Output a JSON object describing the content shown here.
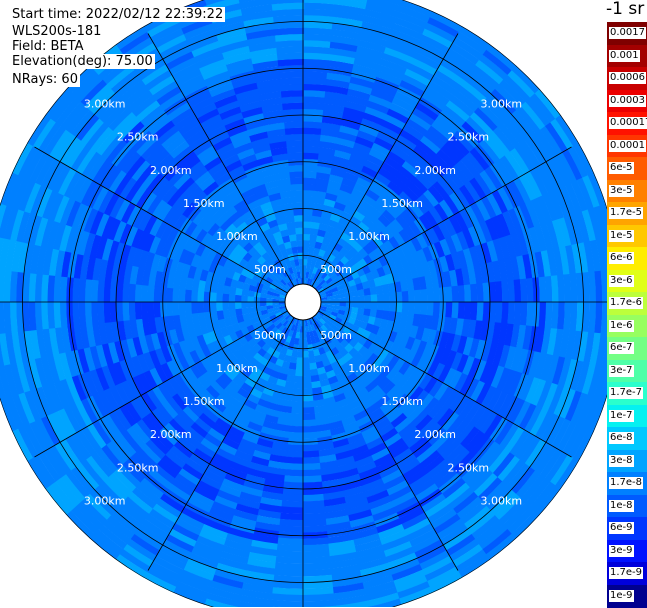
{
  "header": {
    "start_time": "Start time: 2022/02/12 22:39:22",
    "site": "WLS200s-181",
    "field": "Field: BETA",
    "elevation": "Elevation(deg): 75.00",
    "nrays": "NRays: 60"
  },
  "colorbar": {
    "unit": "-1 sr",
    "segments": [
      {
        "label": "0.0017",
        "color": "#7f0000"
      },
      {
        "label": "0.001",
        "color": "#a30000"
      },
      {
        "label": "0.0006",
        "color": "#c80000"
      },
      {
        "label": "0.0003",
        "color": "#ec0000"
      },
      {
        "label": "0.00017",
        "color": "#ff1200"
      },
      {
        "label": "0.0001",
        "color": "#ff3600"
      },
      {
        "label": "6e-5",
        "color": "#ff5b00"
      },
      {
        "label": "3e-5",
        "color": "#ff8000"
      },
      {
        "label": "1.7e-5",
        "color": "#ffa400"
      },
      {
        "label": "1e-5",
        "color": "#ffc800"
      },
      {
        "label": "6e-6",
        "color": "#ffed00"
      },
      {
        "label": "3e-6",
        "color": "#e0ff17"
      },
      {
        "label": "1.7e-6",
        "color": "#bcff3b"
      },
      {
        "label": "1e-6",
        "color": "#97ff60"
      },
      {
        "label": "6e-7",
        "color": "#73ff84"
      },
      {
        "label": "3e-7",
        "color": "#4effa8"
      },
      {
        "label": "1.7e-7",
        "color": "#2affcd"
      },
      {
        "label": "1e-7",
        "color": "#05f1f1"
      },
      {
        "label": "6e-8",
        "color": "#00c8ff"
      },
      {
        "label": "3e-8",
        "color": "#00a4ff"
      },
      {
        "label": "1.7e-8",
        "color": "#0080ff"
      },
      {
        "label": "1e-8",
        "color": "#005bff"
      },
      {
        "label": "6e-9",
        "color": "#0036ff"
      },
      {
        "label": "3e-9",
        "color": "#0012ff"
      },
      {
        "label": "1.7e-9",
        "color": "#0000db"
      },
      {
        "label": "1e-9",
        "color": "#00008f"
      }
    ]
  },
  "range_rings": [
    {
      "label": "500m",
      "range_m": 500
    },
    {
      "label": "1.00km",
      "range_m": 1000
    },
    {
      "label": "1.50km",
      "range_m": 1500
    },
    {
      "label": "2.00km",
      "range_m": 2000
    },
    {
      "label": "2.50km",
      "range_m": 2500
    },
    {
      "label": "3.00km",
      "range_m": 3000
    }
  ],
  "data_palette": {
    "low": "#0036ff",
    "mid": "#005bff",
    "high": "#0080ff",
    "higher": "#00a4ff",
    "highest": "#00c8ff"
  },
  "nrays_value": 60
}
